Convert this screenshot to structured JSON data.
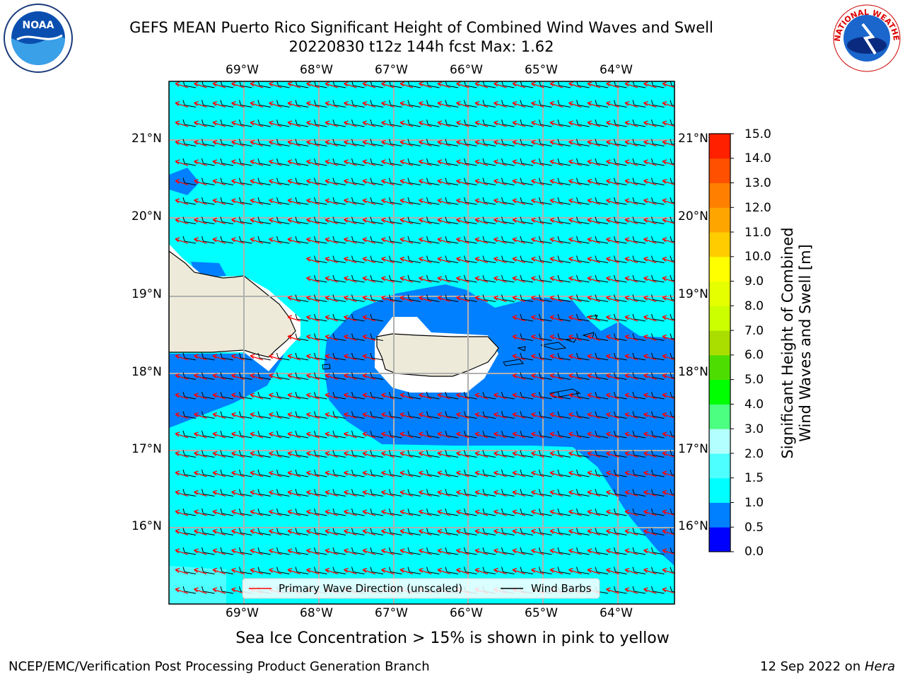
{
  "header": {
    "title_line1": "GEFS MEAN Puerto Rico Significant Height of Combined Wind Waves and Swell",
    "title_line2": "20220830 t12z 144h fcst   Max: 1.62"
  },
  "map": {
    "lon_labels": [
      "69°W",
      "68°W",
      "67°W",
      "66°W",
      "65°W",
      "64°W"
    ],
    "lat_labels_left": [
      "21°N",
      "20°N",
      "19°N",
      "18°N",
      "17°N",
      "16°N"
    ],
    "lat_labels_right": [
      "21°N",
      "20°N",
      "19°N",
      "18°N",
      "17°N",
      "16°N"
    ],
    "legend": {
      "wave_label": "Primary Wave Direction (unscaled)",
      "barb_label": "Wind Barbs"
    },
    "colors": {
      "ocean_1_1_5": "#00ffff",
      "ocean_0_5_1": "#0080ff",
      "land": "#eeead9",
      "arrow": "#ff0000"
    }
  },
  "colorbar": {
    "title_line1": "Significant Height of Combined",
    "title_line2": "Wind Waves and Swell [m]",
    "ticks": [
      "15.0",
      "14.0",
      "13.0",
      "12.0",
      "11.0",
      "10.0",
      "9.0",
      "8.0",
      "7.0",
      "6.0",
      "5.0",
      "4.0",
      "3.0",
      "2.0",
      "1.5",
      "1.0",
      "0.5",
      "0.0"
    ],
    "colors_bottom_to_top": [
      "#0000ff",
      "#0080ff",
      "#00ffff",
      "#4dffff",
      "#b3ffff",
      "#4dff80",
      "#00ff00",
      "#4ddd00",
      "#aadd00",
      "#ccff00",
      "#e6ff00",
      "#ffff00",
      "#ffcc00",
      "#ffa500",
      "#ff8000",
      "#ff5000",
      "#ff2000"
    ]
  },
  "note": "Sea Ice Concentration > 15% is shown in pink to yellow",
  "footer": {
    "left": "NCEP/EMC/Verification Post Processing Product Generation Branch",
    "right_prefix": "12 Sep 2022 on ",
    "right_host": "Hera"
  },
  "logos": {
    "left": "NOAA",
    "right": "NATIONAL WEATHER SERVICE"
  }
}
